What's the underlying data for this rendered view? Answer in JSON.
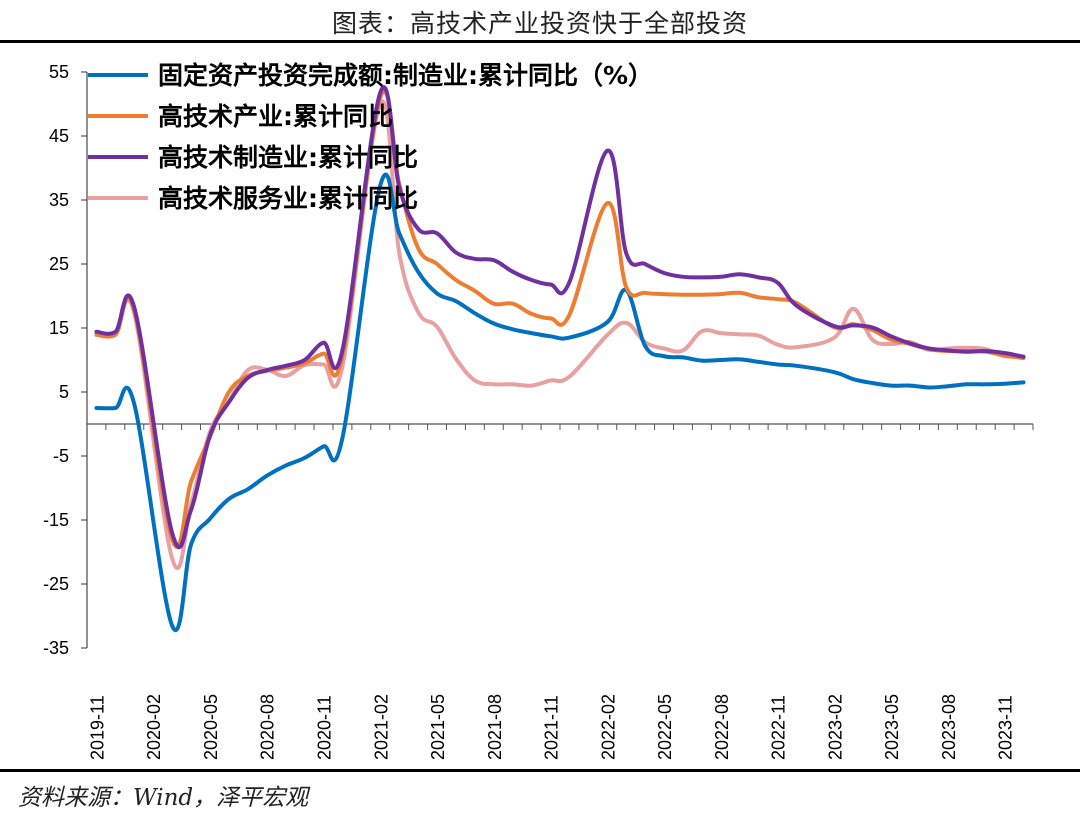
{
  "header": {
    "title": "图表：高技术产业投资快于全部投资"
  },
  "footer": {
    "source": "资料来源：Wind，泽平宏观"
  },
  "chart_data": {
    "type": "line",
    "title": "图表：高技术产业投资快于全部投资",
    "xlabel": "",
    "ylabel": "",
    "ylim": [
      -35,
      55
    ],
    "yticks": [
      55,
      45,
      35,
      25,
      15,
      5,
      -5,
      -15,
      -25,
      -35
    ],
    "x": [
      "2019-11",
      "2019-12",
      "2020-01",
      "2020-02",
      "2020-03",
      "2020-04",
      "2020-05",
      "2020-06",
      "2020-07",
      "2020-08",
      "2020-09",
      "2020-10",
      "2020-11",
      "2020-12",
      "2021-01",
      "2021-02",
      "2021-03",
      "2021-04",
      "2021-05",
      "2021-06",
      "2021-07",
      "2021-08",
      "2021-09",
      "2021-10",
      "2021-11",
      "2021-12",
      "2022-01",
      "2022-02",
      "2022-03",
      "2022-04",
      "2022-05",
      "2022-06",
      "2022-07",
      "2022-08",
      "2022-09",
      "2022-10",
      "2022-11",
      "2022-12",
      "2023-01",
      "2023-02",
      "2023-03",
      "2023-04",
      "2023-05",
      "2023-06",
      "2023-07",
      "2023-08",
      "2023-09",
      "2023-10",
      "2023-11",
      "2023-12"
    ],
    "xtick_labels": [
      "2019-11",
      "2020-02",
      "2020-05",
      "2020-08",
      "2020-11",
      "2021-02",
      "2021-05",
      "2021-08",
      "2021-11",
      "2022-02",
      "2022-05",
      "2022-08",
      "2022-11",
      "2023-02",
      "2023-05",
      "2023-08",
      "2023-11"
    ],
    "grid": false,
    "legend": "top-left",
    "series": [
      {
        "name": "固定资产投资完成额:制造业:累计同比（%）",
        "color": "#0070C0",
        "values": [
          2.5,
          2.5,
          3.1,
          null,
          -31.5,
          -18.8,
          -14.8,
          -11.7,
          -10.2,
          -8.1,
          -6.5,
          -5.3,
          -3.5,
          -2.2,
          null,
          37.3,
          29.8,
          23.8,
          20.4,
          19.2,
          17.3,
          15.7,
          14.8,
          14.2,
          13.7,
          13.5,
          null,
          15.9,
          20.9,
          12.2,
          10.6,
          10.4,
          9.9,
          10.0,
          10.1,
          9.7,
          9.3,
          9.1,
          null,
          8.1,
          7.0,
          6.4,
          6.0,
          6.0,
          5.7,
          5.9,
          6.2,
          6.2,
          6.3,
          6.5
        ]
      },
      {
        "name": "高技术产业:累计同比",
        "color": "#ED7D31",
        "values": [
          14.0,
          14.0,
          17.7,
          null,
          -18.0,
          -9.0,
          -2.0,
          5.0,
          7.5,
          8.3,
          8.8,
          9.5,
          11.0,
          10.6,
          null,
          51.0,
          37.5,
          27.5,
          25.0,
          22.5,
          20.8,
          18.8,
          18.8,
          17.2,
          16.5,
          17.1,
          null,
          34.5,
          21.4,
          20.5,
          20.3,
          20.2,
          20.2,
          20.3,
          20.5,
          19.8,
          19.5,
          18.9,
          null,
          15.1,
          15.6,
          14.7,
          13.2,
          12.5,
          11.7,
          11.4,
          11.4,
          11.3,
          10.7,
          10.3
        ]
      },
      {
        "name": "高技术制造业:累计同比",
        "color": "#7030A0",
        "values": [
          14.4,
          14.4,
          18.2,
          null,
          -17.0,
          -13.4,
          -1.8,
          3.4,
          7.2,
          8.4,
          9.1,
          10.0,
          12.7,
          11.5,
          null,
          51.8,
          37.0,
          30.5,
          29.8,
          26.8,
          25.8,
          25.6,
          23.8,
          22.5,
          21.8,
          22.2,
          null,
          42.7,
          26.7,
          25.0,
          23.6,
          23.0,
          22.9,
          23.0,
          23.4,
          22.9,
          22.1,
          18.5,
          null,
          15.3,
          15.4,
          15.1,
          13.7,
          12.6,
          11.8,
          11.5,
          11.3,
          11.4,
          11.1,
          10.5
        ]
      },
      {
        "name": "高技术服务业:累计同比",
        "color": "#E8A0A0",
        "values": [
          13.9,
          13.9,
          17.3,
          null,
          -21.0,
          -12.5,
          -1.2,
          3.5,
          8.4,
          8.5,
          7.5,
          9.2,
          9.3,
          9.0,
          null,
          50.1,
          26.8,
          17.5,
          15.2,
          10.2,
          6.8,
          6.2,
          6.2,
          6.0,
          6.8,
          7.4,
          null,
          13.9,
          15.8,
          12.8,
          11.8,
          11.5,
          14.5,
          14.2,
          14.0,
          13.8,
          12.4,
          12.0,
          null,
          13.5,
          18.0,
          13.2,
          12.5,
          12.8,
          11.6,
          11.8,
          11.9,
          11.7,
          10.6,
          10.6
        ]
      }
    ]
  }
}
